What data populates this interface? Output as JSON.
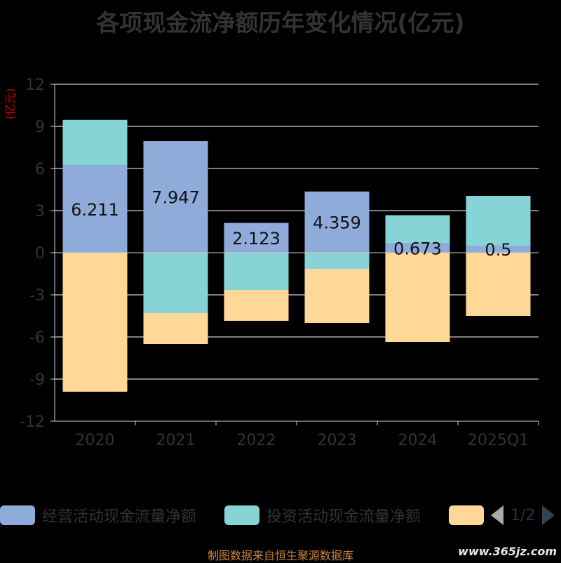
{
  "title": "各项现金流净额历年变化情况(亿元)",
  "unit_label": "(亿元)",
  "source": "制图数据来自恒生聚源数据库",
  "watermark": "www.365jz.com",
  "legend_pager": "1/2",
  "colors": {
    "operating": "#8fabd9",
    "investing": "#86d4d6",
    "financing": "#ffd898",
    "axis": "#cccccc",
    "grid": "#ffffff",
    "tick_text": "#333333",
    "unit_text": "#cc0000"
  },
  "chart_data": {
    "type": "bar",
    "stacked": true,
    "title": "各项现金流净额历年变化情况(亿元)",
    "ylabel": "(亿元)",
    "categories": [
      "2020",
      "2021",
      "2022",
      "2023",
      "2024",
      "2025Q1"
    ],
    "ylim": [
      -12,
      12
    ],
    "yticks": [
      12,
      9,
      6,
      3,
      0,
      -3,
      -6,
      -9,
      -12
    ],
    "grid": true,
    "series": [
      {
        "name": "经营活动现金流量净额",
        "key": "operating",
        "values": [
          6.211,
          7.947,
          2.123,
          4.359,
          0.673,
          0.5
        ],
        "labels": [
          "6.211",
          "7.947",
          "2.123",
          "4.359",
          "0.673",
          "0.5"
        ]
      },
      {
        "name": "投资活动现金流量净额",
        "key": "investing",
        "values": [
          3.25,
          -4.3,
          -2.65,
          -1.15,
          2.0,
          3.55
        ]
      },
      {
        "name": "",
        "key": "financing",
        "values": [
          -9.9,
          -2.2,
          -2.2,
          -3.85,
          -6.35,
          -4.5
        ]
      }
    ],
    "legend_position": "bottom"
  }
}
